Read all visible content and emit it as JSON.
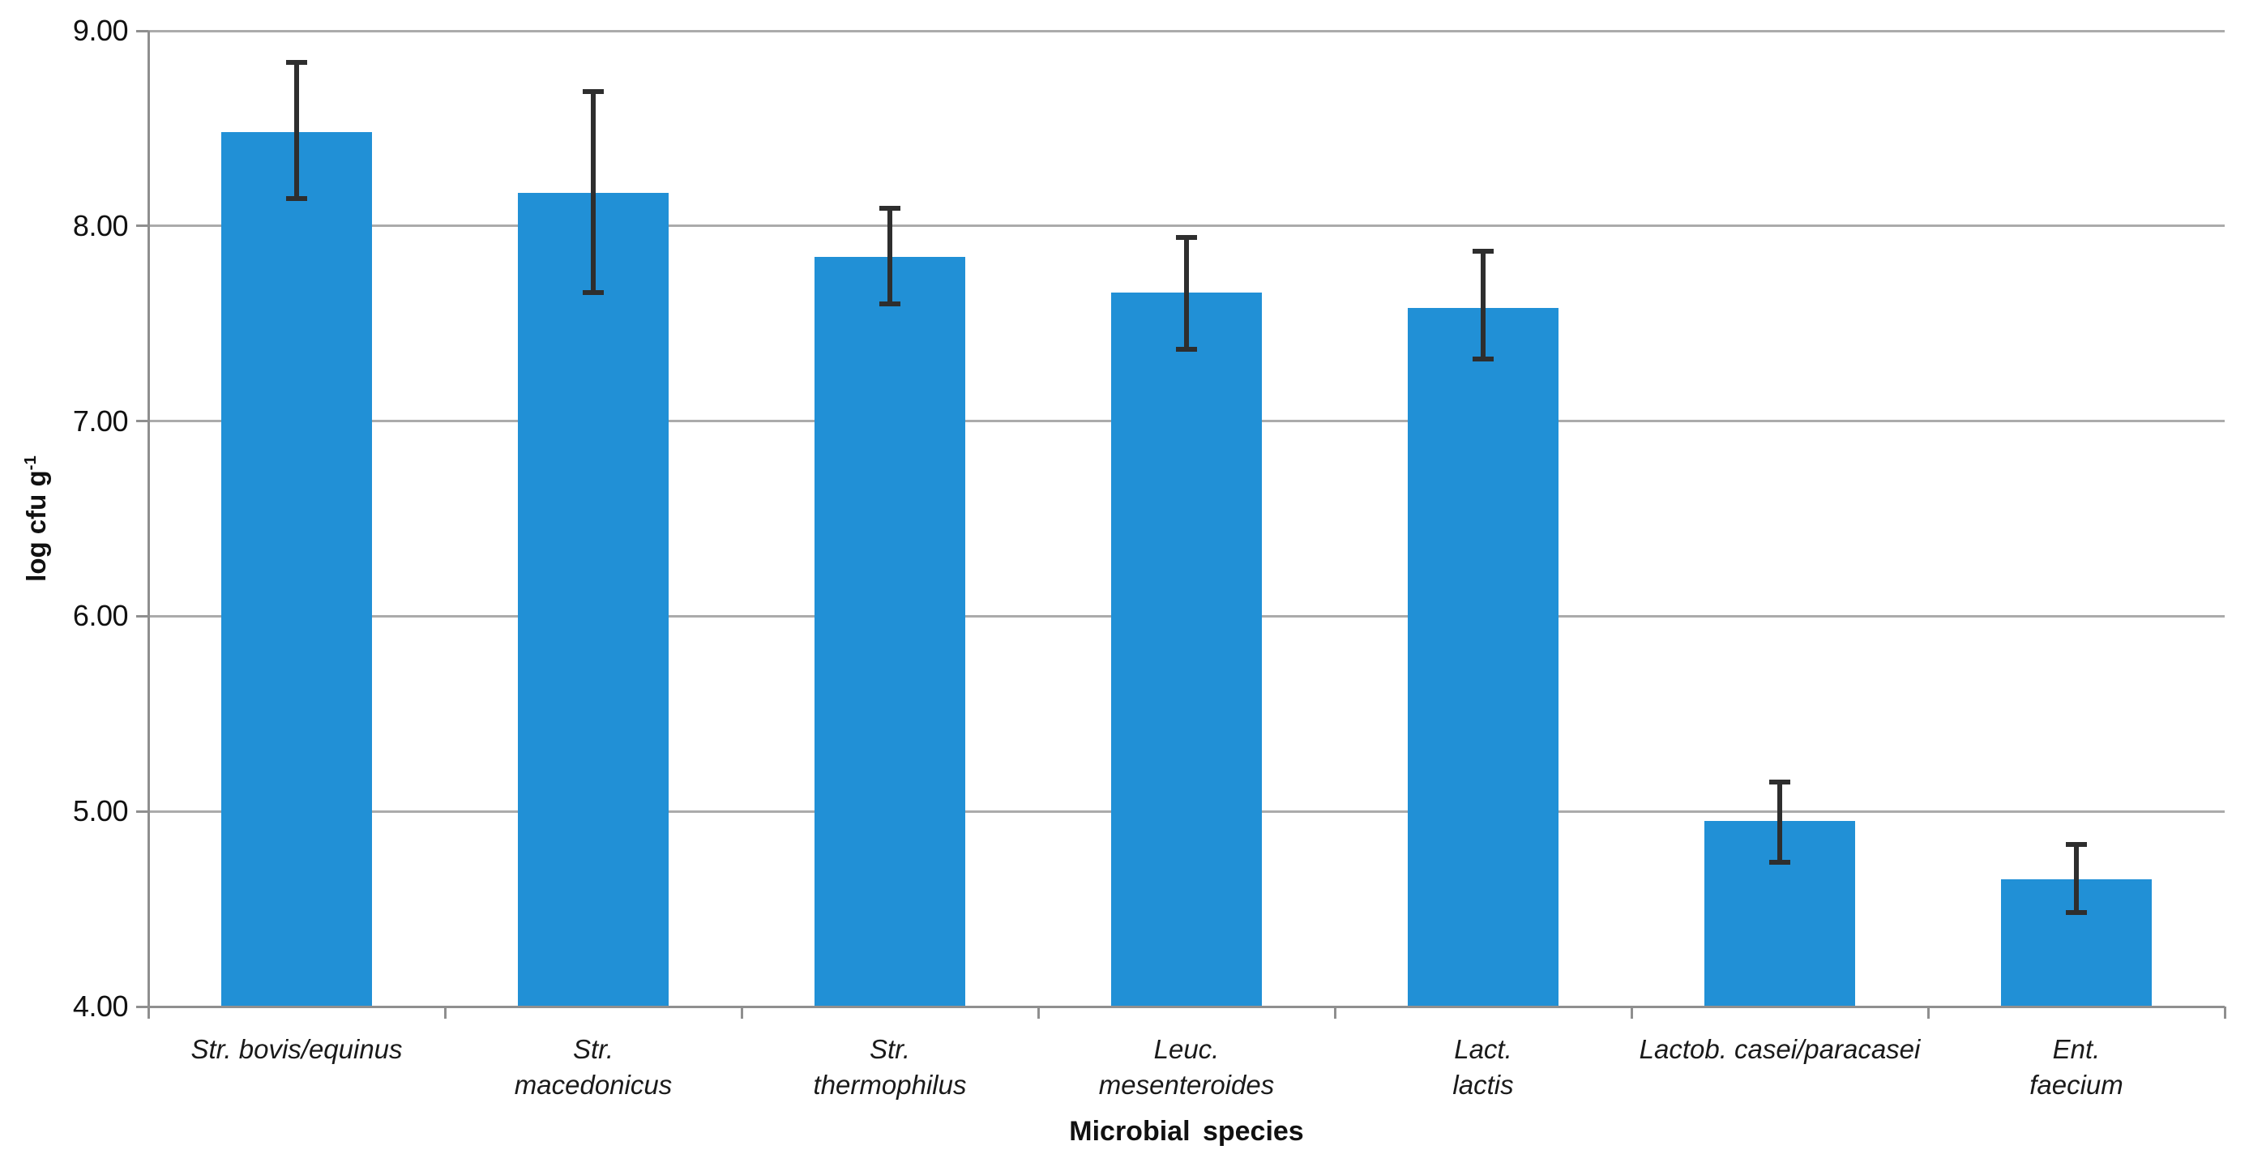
{
  "chart_data": {
    "type": "bar",
    "title": "",
    "xlabel": "Microbial species",
    "ylabel": "log cfu g⁻¹",
    "ylabel_main": "log cfu g",
    "ylabel_sup": "-1",
    "ylim": [
      4.0,
      9.0
    ],
    "ytick_step": 1.0,
    "ytick_labels": [
      "9.00",
      "8.00",
      "7.00",
      "6.00",
      "5.00",
      "4.00"
    ],
    "grid": true,
    "legend": "none",
    "categories": [
      "Str. bovis/equinus",
      "Str.\nmacedonicus",
      "Str.\nthermophilus",
      "Leuc.\nmesenteroides",
      "Lact.\nlactis",
      "Lactob. casei/paracasei",
      "Ent.\nfaecium"
    ],
    "values": [
      8.48,
      8.17,
      7.84,
      7.66,
      7.58,
      4.95,
      4.65
    ],
    "error_up": [
      0.36,
      0.52,
      0.25,
      0.28,
      0.29,
      0.2,
      0.18
    ],
    "error_down": [
      0.34,
      0.51,
      0.24,
      0.29,
      0.26,
      0.21,
      0.17
    ],
    "colors": {
      "bar": "#2190D6",
      "error_bar": "#2E2E2E",
      "gridline": "#ABABAB",
      "axis": "#8F8F8F",
      "background": "#FFFFFF",
      "text": "#111111"
    }
  }
}
